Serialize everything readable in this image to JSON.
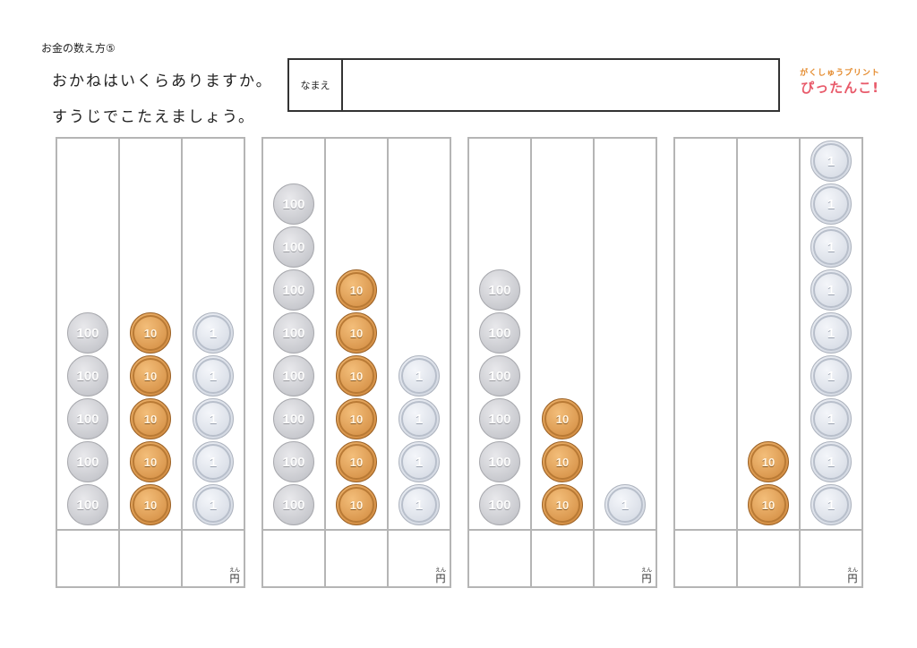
{
  "header": {
    "title": "お金の数え方⑤",
    "instruction_line1": "おかねはいくらありますか。",
    "instruction_line2": "すうじでこたえましょう。",
    "name_label": "なまえ",
    "name_value": ""
  },
  "logo": {
    "top_text": "がくしゅうプリント",
    "main_text": "ぴったんこ!"
  },
  "coin_labels": {
    "c100": "100",
    "c10": "10",
    "c1": "1"
  },
  "answer_unit": {
    "ruby": "えん",
    "unit": "円"
  },
  "problems": [
    {
      "coins_100": 5,
      "coins_10": 5,
      "coins_1": 5,
      "answer": ""
    },
    {
      "coins_100": 8,
      "coins_10": 6,
      "coins_1": 4,
      "answer": ""
    },
    {
      "coins_100": 6,
      "coins_10": 3,
      "coins_1": 1,
      "answer": ""
    },
    {
      "coins_100": 0,
      "coins_10": 2,
      "coins_1": 9,
      "answer": ""
    }
  ]
}
